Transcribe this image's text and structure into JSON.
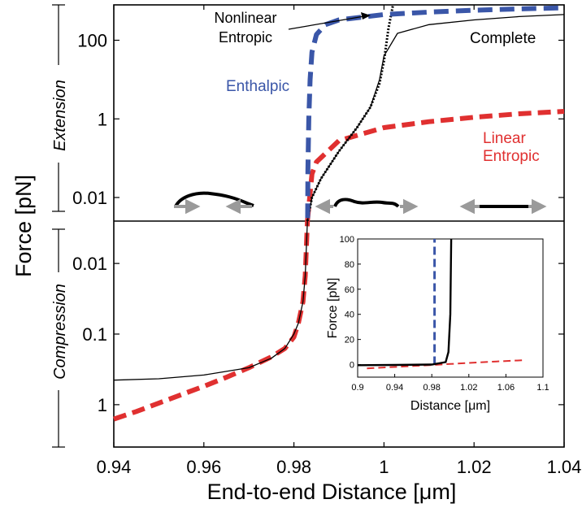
{
  "chart_data": {
    "type": "line",
    "xlabel": "End-to-end Distance [μm]",
    "ylabel": "Force [pN]",
    "xlim": [
      0.94,
      1.04
    ],
    "x_ticks": [
      "0.94",
      "0.96",
      "0.98",
      "1",
      "1.02",
      "1.04"
    ],
    "y_scale": "log",
    "extension": {
      "label": "Extension",
      "y_ticks": [
        "0.01",
        "1",
        "100"
      ],
      "y_tick_values": [
        0.01,
        1,
        100
      ]
    },
    "compression": {
      "label": "Compression",
      "y_ticks": [
        "0.01",
        "0.1",
        "1"
      ],
      "y_tick_values": [
        0.01,
        0.1,
        1
      ]
    },
    "series_labels": {
      "complete": "Complete",
      "enthalpic": "Enthalpic",
      "linear_entropic": "Linear Entropic",
      "nonlinear_entropic": "Nonlinear Entropic"
    },
    "colors": {
      "complete": "#000000",
      "enthalpic": "#3a56a8",
      "linear_entropic": "#e03030",
      "nonlinear_entropic": "#000000",
      "arrow": "#9a9a9a"
    },
    "series": [
      {
        "key": "complete",
        "x": [
          0.983,
          0.984,
          0.986,
          0.99,
          0.994,
          0.997,
          0.999,
          1.0,
          1.003,
          1.01,
          1.02,
          1.03,
          1.04
        ],
        "y": [
          0.002,
          0.01,
          0.03,
          0.15,
          0.6,
          2,
          10,
          40,
          150,
          250,
          330,
          400,
          450
        ]
      },
      {
        "key": "enthalpic",
        "x": [
          0.98305,
          0.9831,
          0.9833,
          0.9836,
          0.984,
          0.985,
          0.987,
          0.99,
          1.0,
          1.01,
          1.02,
          1.03,
          1.04
        ],
        "y": [
          0.003,
          0.05,
          1,
          10,
          50,
          140,
          250,
          330,
          450,
          520,
          580,
          630,
          670
        ]
      },
      {
        "key": "nonlinear_entropic",
        "x": [
          0.983,
          0.984,
          0.986,
          0.99,
          0.994,
          0.997,
          0.999,
          1.0,
          1.001,
          1.002
        ],
        "y": [
          0.002,
          0.01,
          0.03,
          0.15,
          0.6,
          2,
          8,
          30,
          200,
          1500
        ]
      },
      {
        "key": "linear_entropic",
        "x": [
          0.983,
          0.984,
          0.985,
          0.99,
          1.0,
          1.01,
          1.02,
          1.03,
          1.04
        ],
        "y": [
          0.002,
          0.04,
          0.08,
          0.28,
          0.6,
          0.85,
          1.1,
          1.35,
          1.55
        ]
      }
    ],
    "compression_series": [
      {
        "key": "complete",
        "x": [
          0.94,
          0.95,
          0.96,
          0.97,
          0.975,
          0.978,
          0.98,
          0.981,
          0.982,
          0.9825,
          0.983
        ],
        "y": [
          0.45,
          0.43,
          0.38,
          0.3,
          0.22,
          0.16,
          0.1,
          0.07,
          0.035,
          0.015,
          0.002
        ]
      },
      {
        "key": "linear_entropic",
        "x": [
          0.94,
          0.945,
          0.95,
          0.955,
          0.96,
          0.965,
          0.97,
          0.975,
          0.978,
          0.98,
          0.981,
          0.982,
          0.9825,
          0.983
        ],
        "y": [
          1.6,
          1.25,
          0.95,
          0.72,
          0.55,
          0.41,
          0.3,
          0.21,
          0.16,
          0.11,
          0.07,
          0.035,
          0.015,
          0.002
        ]
      }
    ],
    "inset": {
      "xlabel": "Distance [μm]",
      "ylabel": "Force [pN]",
      "xlim": [
        0.9,
        1.1
      ],
      "ylim": [
        -10,
        100
      ],
      "x_ticks": [
        "0.9",
        "0.94",
        "0.98",
        "1.02",
        "1.06",
        "1.1"
      ],
      "x_tick_values": [
        0.9,
        0.94,
        0.98,
        1.02,
        1.06,
        1.1
      ],
      "y_ticks": [
        "0",
        "20",
        "40",
        "60",
        "80",
        "100"
      ],
      "y_tick_values": [
        0,
        20,
        40,
        60,
        80,
        100
      ],
      "series": [
        {
          "key": "enthalpic",
          "x": [
            0.983,
            0.983
          ],
          "y": [
            0,
            100
          ]
        },
        {
          "key": "linear_entropic",
          "x": [
            0.91,
            0.95,
            1.0,
            1.05,
            1.08
          ],
          "y": [
            -3,
            -1.5,
            0.5,
            2.5,
            3.5
          ]
        },
        {
          "key": "complete",
          "x": [
            0.9,
            0.94,
            0.98,
            0.995,
            0.998,
            1.0,
            1.001
          ],
          "y": [
            -0.5,
            -0.3,
            0,
            2,
            10,
            40,
            100
          ]
        }
      ]
    }
  }
}
